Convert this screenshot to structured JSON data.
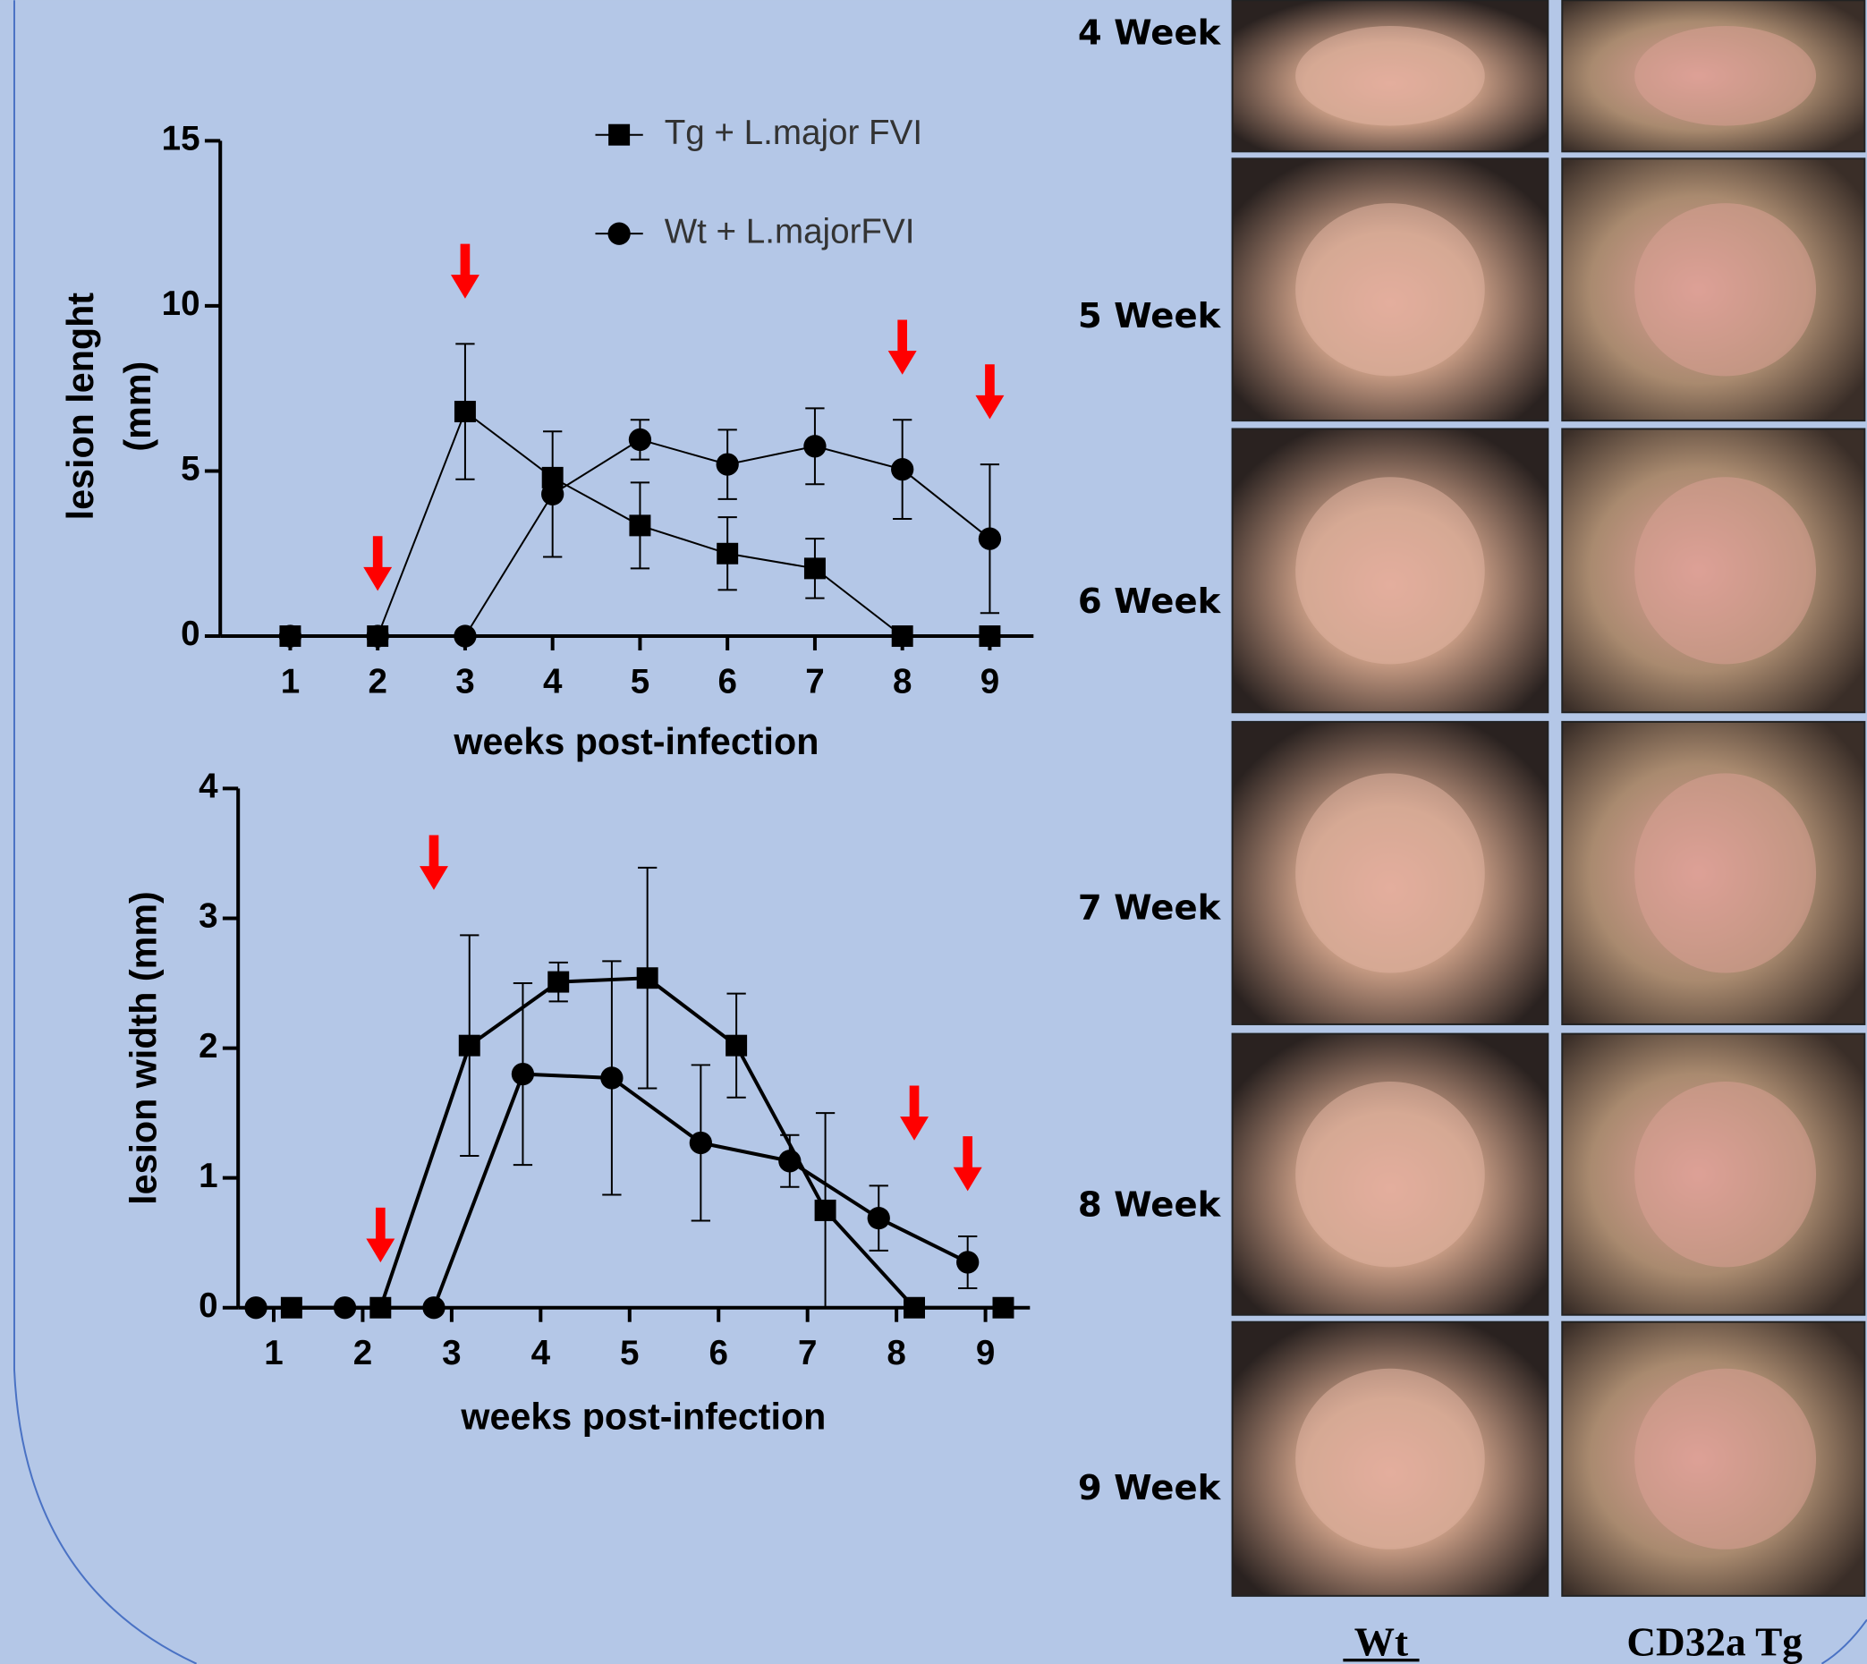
{
  "chart_data": [
    {
      "type": "line",
      "x": [
        1,
        2,
        3,
        4,
        5,
        6,
        7,
        8,
        9
      ],
      "xlim": [
        0.2,
        9.5
      ],
      "xticks": [
        1,
        2,
        3,
        4,
        5,
        6,
        7,
        8,
        9
      ],
      "ylim": [
        0,
        15
      ],
      "yticks": [
        0,
        5,
        10,
        15
      ],
      "xlabel": "weeks post-infection",
      "ylabel_lines": [
        "lesion lenght",
        "(mm)"
      ],
      "line_width": 1.5,
      "arrows_x": [
        2,
        3,
        8,
        9
      ],
      "arrow_color": "#ff0000",
      "series": [
        {
          "name": "Tg + L.major FVI",
          "color": "#000000",
          "marker": "square",
          "values": [
            0,
            0,
            6.8,
            4.8,
            3.35,
            2.5,
            2.05,
            0,
            0
          ],
          "errors": [
            null,
            null,
            2.05,
            0.1,
            1.3,
            1.1,
            0.9,
            null,
            null
          ]
        },
        {
          "name": "Wt + L.majorFVI",
          "color": "#000000",
          "marker": "circle",
          "values": [
            0,
            0,
            0,
            4.3,
            5.95,
            5.2,
            5.75,
            5.05,
            2.95
          ],
          "errors": [
            null,
            null,
            null,
            1.9,
            0.6,
            1.05,
            1.15,
            1.5,
            2.25
          ]
        }
      ]
    },
    {
      "type": "line",
      "xlim": [
        0.6,
        9.5
      ],
      "xticks": [
        1,
        2,
        3,
        4,
        5,
        6,
        7,
        8,
        9
      ],
      "ylim": [
        0,
        4
      ],
      "yticks": [
        0,
        1,
        2,
        3,
        4
      ],
      "xlabel": "weeks post-infection",
      "ylabel_lines": [
        "lesion width (mm)"
      ],
      "line_width": 3,
      "arrows_x": [
        2.2,
        2.8,
        8.2,
        8.8
      ],
      "arrow_color": "#ff0000",
      "series": [
        {
          "color": "#000000",
          "marker": "square",
          "x": [
            1.2,
            2.2,
            3.2,
            4.2,
            5.2,
            6.2,
            7.2,
            8.2,
            9.2
          ],
          "values": [
            0,
            0,
            2.02,
            2.51,
            2.54,
            2.02,
            0.75,
            0,
            0
          ],
          "errors": [
            null,
            null,
            0.85,
            0.15,
            0.85,
            0.4,
            0.75,
            null,
            null
          ]
        },
        {
          "color": "#000000",
          "marker": "circle",
          "x": [
            0.8,
            1.8,
            2.8,
            3.8,
            4.8,
            5.8,
            6.8,
            7.8,
            8.8
          ],
          "values": [
            0,
            0,
            0,
            1.8,
            1.77,
            1.27,
            1.13,
            0.69,
            0.35
          ],
          "errors": [
            null,
            null,
            null,
            0.7,
            0.9,
            0.6,
            0.2,
            0.25,
            0.2
          ]
        }
      ]
    }
  ],
  "photo_panel": {
    "row_labels": [
      "4 Week",
      "5 Week",
      "6 Week",
      "7 Week",
      "8 Week",
      "9 Week"
    ],
    "column_labels": [
      "Wt",
      "CD32a Tg"
    ]
  }
}
